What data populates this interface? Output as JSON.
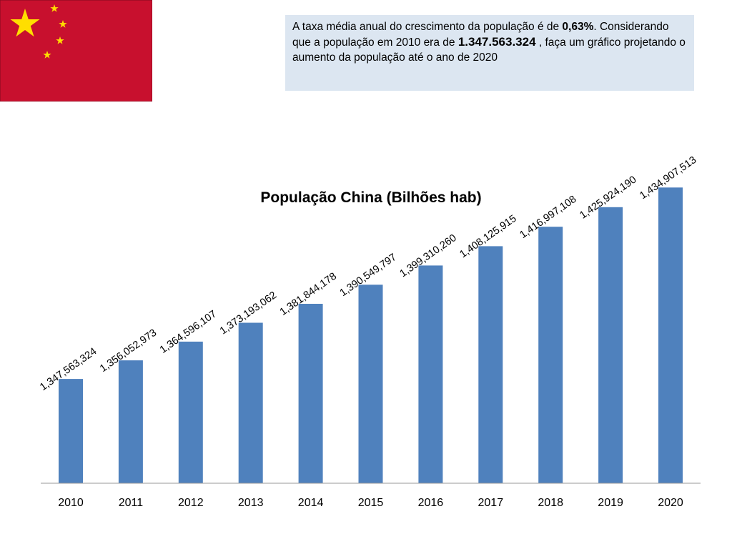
{
  "task": {
    "part1": "A taxa média anual do crescimento da população é de ",
    "rate": "0,63%",
    "part2": ". Considerando que a população em 2010 era de ",
    "population_2010": "1.347.563.324",
    "part3": " , faça um gráfico projetando o aumento da população até o ano de 2020"
  },
  "flag": {
    "icon": "china-flag-icon",
    "background_color": "#c8102e",
    "star_color": "#ffde00"
  },
  "chart_data": {
    "type": "bar",
    "title": "População China (Bilhões hab)",
    "xlabel": "",
    "ylabel": "",
    "categories": [
      "2010",
      "2011",
      "2012",
      "2013",
      "2014",
      "2015",
      "2016",
      "2017",
      "2018",
      "2019",
      "2020"
    ],
    "values": [
      1347563324,
      1356052973,
      1364596107,
      1373193062,
      1381844178,
      1390549797,
      1399310260,
      1408125915,
      1416997108,
      1425924190,
      1434907513
    ],
    "data_labels": [
      "1,347,563,324",
      "1,356,052,973",
      "1,364,596,107",
      "1,373,193,062",
      "1,381,844,178",
      "1,390,549,797",
      "1,399,310,260",
      "1,408,125,915",
      "1,416,997,108",
      "1,425,924,190",
      "1,434,907,513"
    ],
    "ylim": [
      1300000000,
      1450000000
    ],
    "bar_color": "#4f81bd",
    "grid": false,
    "legend": "none"
  }
}
